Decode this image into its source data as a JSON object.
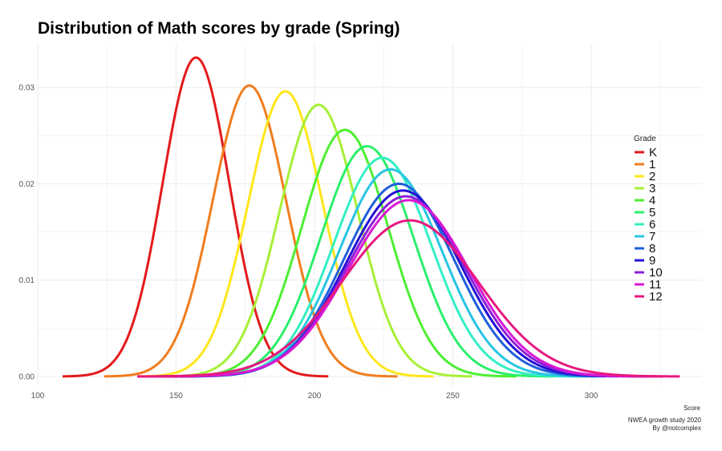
{
  "chart_data": {
    "type": "line",
    "title": "Distribution of Math scores by grade (Spring)",
    "xlabel": "Score",
    "ylabel": "",
    "xlim": [
      100,
      340
    ],
    "ylim": [
      -0.001,
      0.0345
    ],
    "x_ticks": [
      100,
      150,
      200,
      250,
      300
    ],
    "y_ticks": [
      0.0,
      0.01,
      0.02,
      0.03
    ],
    "x_tick_labels": [
      "100",
      "150",
      "200",
      "250",
      "300"
    ],
    "y_tick_labels": [
      "0.00",
      "0.01",
      "0.02",
      "0.03"
    ],
    "grid": true,
    "legend_title": "Grade",
    "legend_position": "right",
    "caption_lines": [
      "NWEA growth study 2020",
      "By @notcomplex"
    ],
    "series": [
      {
        "name": "K",
        "color": "#e31a1c",
        "mean": 157.2,
        "peak": 0.0331,
        "x_range": [
          109,
          205
        ]
      },
      {
        "name": "1",
        "color": "#f07d1e",
        "mean": 176.5,
        "peak": 0.0302,
        "x_range": [
          124,
          230
        ]
      },
      {
        "name": "2",
        "color": "#ffe61a",
        "mean": 189.5,
        "peak": 0.0296,
        "x_range": [
          136,
          243
        ]
      },
      {
        "name": "3",
        "color": "#a6f036",
        "mean": 201.5,
        "peak": 0.0282,
        "x_range": [
          136,
          257
        ]
      },
      {
        "name": "4",
        "color": "#4df032",
        "mean": 211.0,
        "peak": 0.0256,
        "x_range": [
          136,
          273
        ]
      },
      {
        "name": "5",
        "color": "#2bef6b",
        "mean": 219.0,
        "peak": 0.0239,
        "x_range": [
          136,
          287
        ]
      },
      {
        "name": "6",
        "color": "#33efc4",
        "mean": 224.5,
        "peak": 0.0227,
        "x_range": [
          136,
          297
        ]
      },
      {
        "name": "7",
        "color": "#27c5e3",
        "mean": 227.5,
        "peak": 0.0215,
        "x_range": [
          136,
          302
        ]
      },
      {
        "name": "8",
        "color": "#1f5fdb",
        "mean": 230.5,
        "peak": 0.02,
        "x_range": [
          136,
          305
        ]
      },
      {
        "name": "9",
        "color": "#2311d4",
        "mean": 232.0,
        "peak": 0.0193,
        "x_range": [
          136,
          310
        ]
      },
      {
        "name": "10",
        "color": "#8a1fd9",
        "mean": 233.0,
        "peak": 0.0187,
        "x_range": [
          136,
          322
        ]
      },
      {
        "name": "11",
        "color": "#d919d4",
        "mean": 234.0,
        "peak": 0.0183,
        "x_range": [
          136,
          326
        ]
      },
      {
        "name": "12",
        "color": "#e6197f",
        "mean": 234.5,
        "peak": 0.0162,
        "x_range": [
          136,
          332
        ]
      }
    ]
  }
}
